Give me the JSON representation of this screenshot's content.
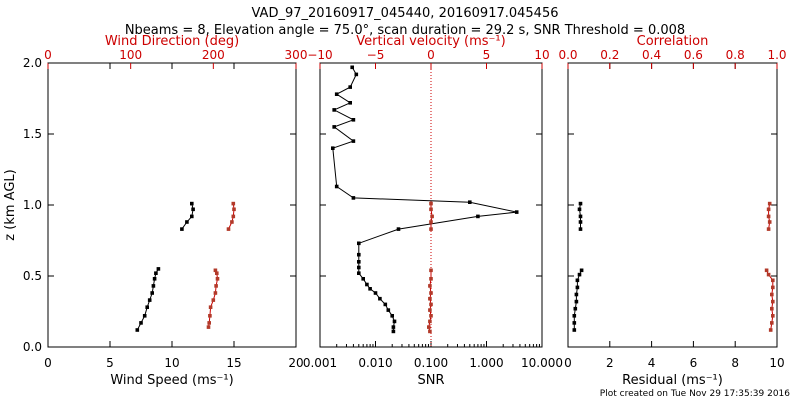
{
  "title": "VAD_97_20160917_045440, 20160917.045456",
  "subtitle": "Nbeams = 8, Elevation angle = 75.0°, scan duration = 29.2 s, SNR Threshold = 0.008",
  "footer": "Plot created on Tue Nov 29 17:35:39 2016",
  "colors": {
    "primary": "#000000",
    "accent": "#cc0000",
    "accent_marker": "#b23a2a"
  },
  "chart_data": [
    {
      "type": "scatter",
      "ylabel": "z (km AGL)",
      "ylim": [
        0,
        2
      ],
      "yticks": [
        "0.0",
        "0.5",
        "1.0",
        "1.5",
        "2.0"
      ],
      "xlabel": "Wind Speed (ms⁻¹)",
      "xlim": [
        0,
        20
      ],
      "xticks": [
        "0",
        "5",
        "10",
        "15",
        "20"
      ],
      "top_xlabel": "Wind Direction (deg)",
      "top_xlim": [
        0,
        360
      ],
      "top_xticks": [
        "0",
        "100",
        "200",
        "300"
      ],
      "series": [
        {
          "axis": "bottom",
          "color": "black",
          "segments": [
            {
              "x": [
                7.2,
                7.5,
                7.8,
                8.0,
                8.2,
                8.4,
                8.5,
                8.6,
                8.7,
                8.9
              ],
              "y": [
                0.12,
                0.17,
                0.22,
                0.28,
                0.33,
                0.38,
                0.43,
                0.48,
                0.52,
                0.55
              ]
            },
            {
              "x": [
                10.8,
                11.2,
                11.6,
                11.7,
                11.6
              ],
              "y": [
                0.83,
                0.88,
                0.92,
                0.97,
                1.01
              ]
            }
          ]
        },
        {
          "axis": "top",
          "color": "red",
          "segments": [
            {
              "x": [
                233,
                234,
                235,
                236,
                240,
                243,
                244,
                246,
                245,
                243
              ],
              "y": [
                0.14,
                0.17,
                0.22,
                0.28,
                0.33,
                0.38,
                0.43,
                0.48,
                0.52,
                0.54
              ]
            },
            {
              "x": [
                262,
                267,
                269,
                270,
                269
              ],
              "y": [
                0.83,
                0.88,
                0.92,
                0.97,
                1.01
              ]
            }
          ]
        }
      ]
    },
    {
      "type": "line",
      "xscale": "log",
      "xlabel": "SNR",
      "xlim": [
        0.001,
        10
      ],
      "xticks": [
        "0.001",
        "0.010",
        "0.100",
        "1.000",
        "10.000"
      ],
      "top_xlabel": "Vertical velocity (ms⁻¹)",
      "top_xlim": [
        -10,
        10
      ],
      "top_xticks": [
        "−10",
        "−5",
        "0",
        "5",
        "10"
      ],
      "top_zero_line": 0,
      "ylim": [
        0,
        2
      ],
      "series": [
        {
          "axis": "bottom",
          "color": "black",
          "x": [
            0.021,
            0.021,
            0.022,
            0.02,
            0.017,
            0.015,
            0.012,
            0.01,
            0.008,
            0.007,
            0.006,
            0.005,
            0.005,
            0.005,
            0.005,
            0.005,
            0.026,
            0.7,
            3.5,
            0.5,
            0.004,
            0.002,
            0.0017,
            0.004,
            0.0018,
            0.004,
            0.0018,
            0.0035,
            0.002,
            0.0035,
            0.0045,
            0.0038
          ],
          "y": [
            0.11,
            0.14,
            0.18,
            0.22,
            0.26,
            0.3,
            0.34,
            0.38,
            0.41,
            0.44,
            0.48,
            0.52,
            0.56,
            0.6,
            0.65,
            0.73,
            0.83,
            0.92,
            0.95,
            1.02,
            1.05,
            1.13,
            1.4,
            1.45,
            1.55,
            1.6,
            1.67,
            1.72,
            1.78,
            1.83,
            1.92,
            1.97
          ]
        },
        {
          "axis": "top",
          "color": "red",
          "segments": [
            {
              "x": [
                -0.1,
                -0.2,
                -0.1,
                0.0,
                -0.1,
                0.0,
                -0.1,
                0.0,
                -0.1,
                0.0,
                0.0
              ],
              "y": [
                0.11,
                0.14,
                0.18,
                0.22,
                0.26,
                0.3,
                0.34,
                0.38,
                0.43,
                0.48,
                0.54
              ]
            },
            {
              "x": [
                0.0,
                0.0,
                0.1,
                0.0,
                0.0
              ],
              "y": [
                0.83,
                0.88,
                0.92,
                0.97,
                1.01
              ]
            }
          ]
        }
      ]
    },
    {
      "type": "scatter",
      "xlabel": "Residual (ms⁻¹)",
      "xlim": [
        0,
        10
      ],
      "xticks": [
        "0",
        "2",
        "4",
        "6",
        "8",
        "10"
      ],
      "top_xlabel": "Correlation",
      "top_xlim": [
        0,
        1
      ],
      "top_xticks": [
        "0.0",
        "0.2",
        "0.4",
        "0.6",
        "0.8",
        "1.0"
      ],
      "ylim": [
        0,
        2
      ],
      "series": [
        {
          "axis": "bottom",
          "color": "black",
          "segments": [
            {
              "x": [
                0.3,
                0.3,
                0.3,
                0.35,
                0.4,
                0.4,
                0.45,
                0.45,
                0.55,
                0.65
              ],
              "y": [
                0.12,
                0.17,
                0.22,
                0.27,
                0.32,
                0.37,
                0.42,
                0.47,
                0.51,
                0.54
              ]
            },
            {
              "x": [
                0.6,
                0.6,
                0.6,
                0.55,
                0.6
              ],
              "y": [
                0.83,
                0.88,
                0.92,
                0.97,
                1.01
              ]
            }
          ]
        },
        {
          "axis": "top",
          "color": "red",
          "segments": [
            {
              "x": [
                0.97,
                0.975,
                0.98,
                0.975,
                0.98,
                0.975,
                0.98,
                0.98,
                0.96,
                0.95
              ],
              "y": [
                0.12,
                0.17,
                0.22,
                0.27,
                0.32,
                0.37,
                0.42,
                0.47,
                0.51,
                0.54
              ]
            },
            {
              "x": [
                0.96,
                0.965,
                0.96,
                0.96,
                0.965
              ],
              "y": [
                0.83,
                0.88,
                0.92,
                0.97,
                1.01
              ]
            }
          ]
        }
      ]
    }
  ]
}
